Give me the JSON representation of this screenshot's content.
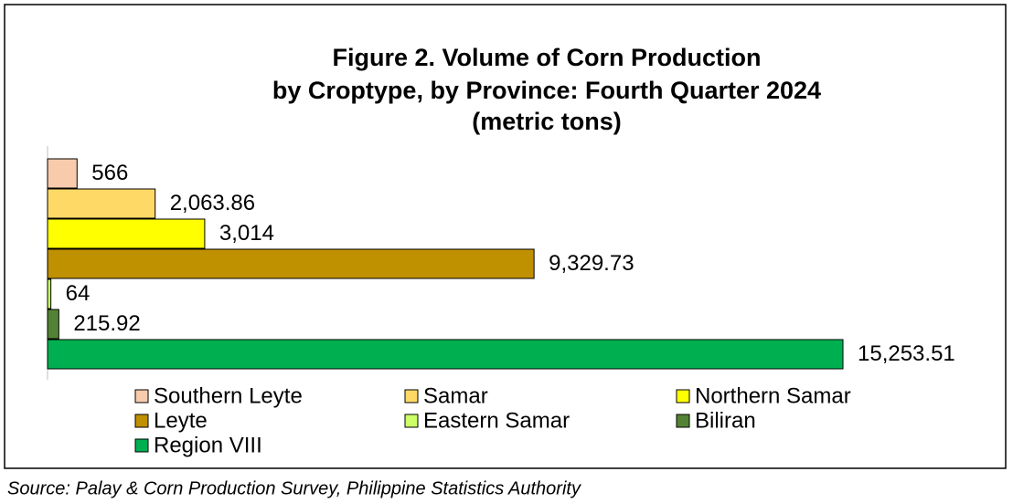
{
  "chart_data": {
    "type": "bar",
    "orientation": "horizontal",
    "title": [
      "Figure 2. Volume of Corn Production",
      "by Croptype, by Province: Fourth Quarter 2024",
      "(metric tons)"
    ],
    "series": [
      {
        "name": "Southern Leyte",
        "color": "#f8cbad",
        "values": [
          566
        ],
        "value_labels": [
          "566"
        ]
      },
      {
        "name": "Samar",
        "color": "#ffd966",
        "values": [
          2063.86
        ],
        "value_labels": [
          "2,063.86"
        ]
      },
      {
        "name": "Northern Samar",
        "color": "#ffff00",
        "values": [
          3014
        ],
        "value_labels": [
          "3,014"
        ]
      },
      {
        "name": "Leyte",
        "color": "#bf9000",
        "values": [
          9329.73
        ],
        "value_labels": [
          "9,329.73"
        ]
      },
      {
        "name": "Eastern Samar",
        "color": "#ccff66",
        "values": [
          64
        ],
        "value_labels": [
          "64"
        ]
      },
      {
        "name": "Biliran",
        "color": "#548235",
        "values": [
          215.92
        ],
        "value_labels": [
          "215.92"
        ]
      },
      {
        "name": "Region VIII",
        "color": "#00b050",
        "values": [
          15253.51
        ],
        "value_labels": [
          "15,253.51"
        ]
      }
    ],
    "legend": "bottom",
    "source": "Source: Palay & Corn Production Survey, Philippine Statistics Authority"
  }
}
